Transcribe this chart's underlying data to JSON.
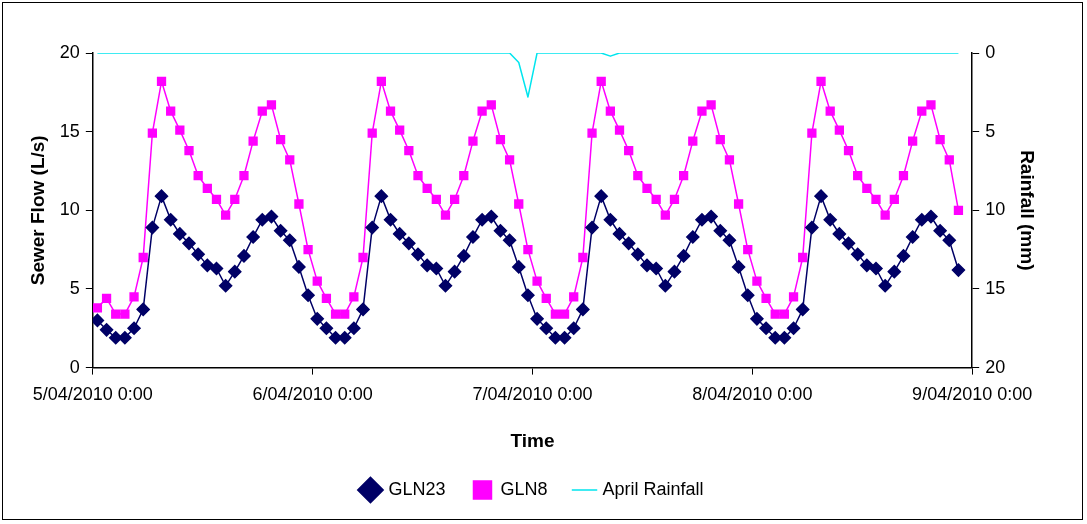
{
  "chart_data": {
    "type": "line",
    "xlabel": "Time",
    "ylabel": "Sewer Flow (L/s)",
    "y2label": "Rainfall (mm)",
    "xlim": [
      "2010-04-05T00:00",
      "2010-04-09T00:00"
    ],
    "xticks": [
      {
        "value": "2010-04-05T00:00",
        "label": "5/04/2010 0:00"
      },
      {
        "value": "2010-04-06T00:00",
        "label": "6/04/2010 0:00"
      },
      {
        "value": "2010-04-07T00:00",
        "label": "7/04/2010 0:00"
      },
      {
        "value": "2010-04-08T00:00",
        "label": "8/04/2010 0:00"
      },
      {
        "value": "2010-04-09T00:00",
        "label": "9/04/2010 0:00"
      }
    ],
    "ylim": [
      0,
      20
    ],
    "yticks": [
      0,
      5,
      10,
      15,
      20
    ],
    "y2lim": [
      20,
      0
    ],
    "y2ticks": [
      0,
      5,
      10,
      15,
      20
    ],
    "grid": false,
    "legend": "bottom",
    "line_style": "solid",
    "x": [
      "2010-04-05T00:30",
      "2010-04-05T01:30",
      "2010-04-05T02:30",
      "2010-04-05T03:30",
      "2010-04-05T04:30",
      "2010-04-05T05:30",
      "2010-04-05T06:30",
      "2010-04-05T07:30",
      "2010-04-05T08:30",
      "2010-04-05T09:30",
      "2010-04-05T10:30",
      "2010-04-05T11:30",
      "2010-04-05T12:30",
      "2010-04-05T13:30",
      "2010-04-05T14:30",
      "2010-04-05T15:30",
      "2010-04-05T16:30",
      "2010-04-05T17:30",
      "2010-04-05T18:30",
      "2010-04-05T19:30",
      "2010-04-05T20:30",
      "2010-04-05T21:30",
      "2010-04-05T22:30",
      "2010-04-05T23:30",
      "2010-04-06T00:30",
      "2010-04-06T01:30",
      "2010-04-06T02:30",
      "2010-04-06T03:30",
      "2010-04-06T04:30",
      "2010-04-06T05:30",
      "2010-04-06T06:30",
      "2010-04-06T07:30",
      "2010-04-06T08:30",
      "2010-04-06T09:30",
      "2010-04-06T10:30",
      "2010-04-06T11:30",
      "2010-04-06T12:30",
      "2010-04-06T13:30",
      "2010-04-06T14:30",
      "2010-04-06T15:30",
      "2010-04-06T16:30",
      "2010-04-06T17:30",
      "2010-04-06T18:30",
      "2010-04-06T19:30",
      "2010-04-06T20:30",
      "2010-04-06T21:30",
      "2010-04-06T22:30",
      "2010-04-06T23:30",
      "2010-04-07T00:30",
      "2010-04-07T01:30",
      "2010-04-07T02:30",
      "2010-04-07T03:30",
      "2010-04-07T04:30",
      "2010-04-07T05:30",
      "2010-04-07T06:30",
      "2010-04-07T07:30",
      "2010-04-07T08:30",
      "2010-04-07T09:30",
      "2010-04-07T10:30",
      "2010-04-07T11:30",
      "2010-04-07T12:30",
      "2010-04-07T13:30",
      "2010-04-07T14:30",
      "2010-04-07T15:30",
      "2010-04-07T16:30",
      "2010-04-07T17:30",
      "2010-04-07T18:30",
      "2010-04-07T19:30",
      "2010-04-07T20:30",
      "2010-04-07T21:30",
      "2010-04-07T22:30",
      "2010-04-07T23:30",
      "2010-04-08T00:30",
      "2010-04-08T01:30",
      "2010-04-08T02:30",
      "2010-04-08T03:30",
      "2010-04-08T04:30",
      "2010-04-08T05:30",
      "2010-04-08T06:30",
      "2010-04-08T07:30",
      "2010-04-08T08:30",
      "2010-04-08T09:30",
      "2010-04-08T10:30",
      "2010-04-08T11:30",
      "2010-04-08T12:30",
      "2010-04-08T13:30",
      "2010-04-08T14:30",
      "2010-04-08T15:30",
      "2010-04-08T16:30",
      "2010-04-08T17:30",
      "2010-04-08T18:30",
      "2010-04-08T19:30",
      "2010-04-08T20:30",
      "2010-04-08T21:30",
      "2010-04-08T22:30"
    ],
    "series": [
      {
        "name": "GLN23",
        "color": "#000066",
        "marker": "diamond",
        "values": [
          3.0,
          2.4,
          1.9,
          1.9,
          2.5,
          3.7,
          8.9,
          10.9,
          9.4,
          8.5,
          7.9,
          7.2,
          6.5,
          6.3,
          5.2,
          6.1,
          7.1,
          8.3,
          9.4,
          9.6,
          8.7,
          8.1,
          6.4,
          4.6,
          3.1,
          2.5,
          1.9,
          1.9,
          2.5,
          3.7,
          8.9,
          10.9,
          9.4,
          8.5,
          7.9,
          7.2,
          6.5,
          6.3,
          5.2,
          6.1,
          7.1,
          8.3,
          9.4,
          9.6,
          8.7,
          8.1,
          6.4,
          4.6,
          3.1,
          2.5,
          1.9,
          1.9,
          2.5,
          3.7,
          8.9,
          10.9,
          9.4,
          8.5,
          7.9,
          7.2,
          6.5,
          6.3,
          5.2,
          6.1,
          7.1,
          8.3,
          9.4,
          9.6,
          8.7,
          8.1,
          6.4,
          4.6,
          3.1,
          2.5,
          1.9,
          1.9,
          2.5,
          3.7,
          8.9,
          10.9,
          9.4,
          8.5,
          7.9,
          7.2,
          6.5,
          6.3,
          5.2,
          6.1,
          7.1,
          8.3,
          9.4,
          9.6,
          8.7,
          8.1,
          6.2
        ]
      },
      {
        "name": "GLN8",
        "color": "#ff00ff",
        "marker": "square",
        "values": [
          3.8,
          4.4,
          3.4,
          3.4,
          4.5,
          7.0,
          14.9,
          18.2,
          16.3,
          15.1,
          13.8,
          12.2,
          11.4,
          10.7,
          9.7,
          10.7,
          12.2,
          14.4,
          16.3,
          16.7,
          14.5,
          13.2,
          10.4,
          7.5,
          5.5,
          4.4,
          3.4,
          3.4,
          4.5,
          7.0,
          14.9,
          18.2,
          16.3,
          15.1,
          13.8,
          12.2,
          11.4,
          10.7,
          9.7,
          10.7,
          12.2,
          14.4,
          16.3,
          16.7,
          14.5,
          13.2,
          10.4,
          7.5,
          5.5,
          4.4,
          3.4,
          3.4,
          4.5,
          7.0,
          14.9,
          18.2,
          16.3,
          15.1,
          13.8,
          12.2,
          11.4,
          10.7,
          9.7,
          10.7,
          12.2,
          14.4,
          16.3,
          16.7,
          14.5,
          13.2,
          10.4,
          7.5,
          5.5,
          4.4,
          3.4,
          3.4,
          4.5,
          7.0,
          14.9,
          18.2,
          16.3,
          15.1,
          13.8,
          12.2,
          11.4,
          10.7,
          9.7,
          10.7,
          12.2,
          14.4,
          16.3,
          16.7,
          14.5,
          13.2,
          10.0
        ]
      },
      {
        "name": "April Rainfall",
        "color": "#00e5ee",
        "marker": "none",
        "axis": "y2",
        "x": [
          "2010-04-05T00:30",
          "2010-04-06T21:30",
          "2010-04-06T22:30",
          "2010-04-06T23:30",
          "2010-04-07T00:30",
          "2010-04-07T07:30",
          "2010-04-07T08:30",
          "2010-04-07T09:30",
          "2010-04-08T22:30"
        ],
        "values": [
          0,
          0,
          0.6,
          2.8,
          0,
          0,
          0.2,
          0,
          0
        ]
      }
    ]
  }
}
